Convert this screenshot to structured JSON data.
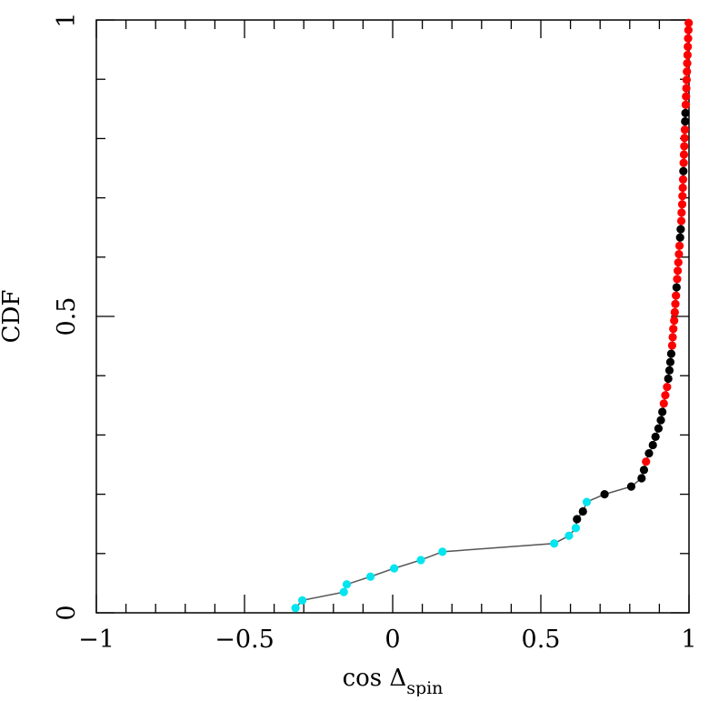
{
  "chart_data": {
    "type": "scatter",
    "xlabel_main": "cos Δ",
    "xlabel_sub": "spin",
    "ylabel": "CDF",
    "xlim": [
      -1,
      1
    ],
    "ylim": [
      0,
      1
    ],
    "x_major_ticks": [
      -1,
      -0.5,
      0,
      0.5,
      1
    ],
    "x_tick_labels": [
      "−1",
      "−0.5",
      "0",
      "0.5",
      "1"
    ],
    "x_minor_step": 0.1,
    "y_major_ticks": [
      0,
      0.5,
      1
    ],
    "y_tick_labels": [
      "0",
      "0.5",
      "1"
    ],
    "y_minor_step": 0.1,
    "grid": false,
    "line_color": "#555555",
    "colors": {
      "low": "#00e5f0",
      "mid": "#000000",
      "high": "#ff0000"
    },
    "points": [
      {
        "x": -0.328,
        "y": 0.008,
        "c": "low"
      },
      {
        "x": -0.305,
        "y": 0.021,
        "c": "low"
      },
      {
        "x": -0.165,
        "y": 0.035,
        "c": "low"
      },
      {
        "x": -0.155,
        "y": 0.048,
        "c": "low"
      },
      {
        "x": -0.075,
        "y": 0.061,
        "c": "low"
      },
      {
        "x": 0.005,
        "y": 0.075,
        "c": "low"
      },
      {
        "x": 0.095,
        "y": 0.089,
        "c": "low"
      },
      {
        "x": 0.168,
        "y": 0.103,
        "c": "low"
      },
      {
        "x": 0.545,
        "y": 0.117,
        "c": "low"
      },
      {
        "x": 0.595,
        "y": 0.13,
        "c": "low"
      },
      {
        "x": 0.618,
        "y": 0.143,
        "c": "low"
      },
      {
        "x": 0.622,
        "y": 0.158,
        "c": "mid"
      },
      {
        "x": 0.642,
        "y": 0.171,
        "c": "mid"
      },
      {
        "x": 0.655,
        "y": 0.187,
        "c": "low"
      },
      {
        "x": 0.715,
        "y": 0.2,
        "c": "mid"
      },
      {
        "x": 0.805,
        "y": 0.213,
        "c": "mid"
      },
      {
        "x": 0.84,
        "y": 0.227,
        "c": "mid"
      },
      {
        "x": 0.848,
        "y": 0.241,
        "c": "mid"
      },
      {
        "x": 0.855,
        "y": 0.255,
        "c": "high"
      },
      {
        "x": 0.865,
        "y": 0.269,
        "c": "mid"
      },
      {
        "x": 0.878,
        "y": 0.283,
        "c": "mid"
      },
      {
        "x": 0.887,
        "y": 0.297,
        "c": "mid"
      },
      {
        "x": 0.897,
        "y": 0.311,
        "c": "mid"
      },
      {
        "x": 0.905,
        "y": 0.325,
        "c": "mid"
      },
      {
        "x": 0.91,
        "y": 0.339,
        "c": "mid"
      },
      {
        "x": 0.915,
        "y": 0.353,
        "c": "high"
      },
      {
        "x": 0.92,
        "y": 0.367,
        "c": "high"
      },
      {
        "x": 0.926,
        "y": 0.381,
        "c": "high"
      },
      {
        "x": 0.93,
        "y": 0.395,
        "c": "mid"
      },
      {
        "x": 0.934,
        "y": 0.409,
        "c": "mid"
      },
      {
        "x": 0.937,
        "y": 0.423,
        "c": "mid"
      },
      {
        "x": 0.94,
        "y": 0.437,
        "c": "mid"
      },
      {
        "x": 0.943,
        "y": 0.451,
        "c": "high"
      },
      {
        "x": 0.945,
        "y": 0.465,
        "c": "high"
      },
      {
        "x": 0.947,
        "y": 0.479,
        "c": "high"
      },
      {
        "x": 0.95,
        "y": 0.493,
        "c": "high"
      },
      {
        "x": 0.952,
        "y": 0.507,
        "c": "high"
      },
      {
        "x": 0.954,
        "y": 0.521,
        "c": "high"
      },
      {
        "x": 0.956,
        "y": 0.535,
        "c": "high"
      },
      {
        "x": 0.958,
        "y": 0.549,
        "c": "mid"
      },
      {
        "x": 0.96,
        "y": 0.563,
        "c": "high"
      },
      {
        "x": 0.962,
        "y": 0.577,
        "c": "high"
      },
      {
        "x": 0.964,
        "y": 0.591,
        "c": "high"
      },
      {
        "x": 0.966,
        "y": 0.605,
        "c": "high"
      },
      {
        "x": 0.968,
        "y": 0.619,
        "c": "high"
      },
      {
        "x": 0.97,
        "y": 0.633,
        "c": "mid"
      },
      {
        "x": 0.972,
        "y": 0.647,
        "c": "mid"
      },
      {
        "x": 0.974,
        "y": 0.661,
        "c": "high"
      },
      {
        "x": 0.975,
        "y": 0.675,
        "c": "high"
      },
      {
        "x": 0.977,
        "y": 0.689,
        "c": "high"
      },
      {
        "x": 0.978,
        "y": 0.703,
        "c": "high"
      },
      {
        "x": 0.979,
        "y": 0.717,
        "c": "high"
      },
      {
        "x": 0.98,
        "y": 0.731,
        "c": "high"
      },
      {
        "x": 0.981,
        "y": 0.745,
        "c": "mid"
      },
      {
        "x": 0.982,
        "y": 0.759,
        "c": "high"
      },
      {
        "x": 0.983,
        "y": 0.773,
        "c": "high"
      },
      {
        "x": 0.984,
        "y": 0.787,
        "c": "high"
      },
      {
        "x": 0.985,
        "y": 0.801,
        "c": "high"
      },
      {
        "x": 0.986,
        "y": 0.815,
        "c": "high"
      },
      {
        "x": 0.987,
        "y": 0.829,
        "c": "mid"
      },
      {
        "x": 0.988,
        "y": 0.843,
        "c": "mid"
      },
      {
        "x": 0.989,
        "y": 0.857,
        "c": "high"
      },
      {
        "x": 0.99,
        "y": 0.871,
        "c": "high"
      },
      {
        "x": 0.991,
        "y": 0.885,
        "c": "high"
      },
      {
        "x": 0.992,
        "y": 0.899,
        "c": "high"
      },
      {
        "x": 0.993,
        "y": 0.913,
        "c": "high"
      },
      {
        "x": 0.994,
        "y": 0.927,
        "c": "high"
      },
      {
        "x": 0.995,
        "y": 0.941,
        "c": "high"
      },
      {
        "x": 0.996,
        "y": 0.955,
        "c": "high"
      },
      {
        "x": 0.997,
        "y": 0.969,
        "c": "high"
      },
      {
        "x": 0.998,
        "y": 0.983,
        "c": "high"
      },
      {
        "x": 0.999,
        "y": 0.995,
        "c": "high"
      }
    ]
  }
}
